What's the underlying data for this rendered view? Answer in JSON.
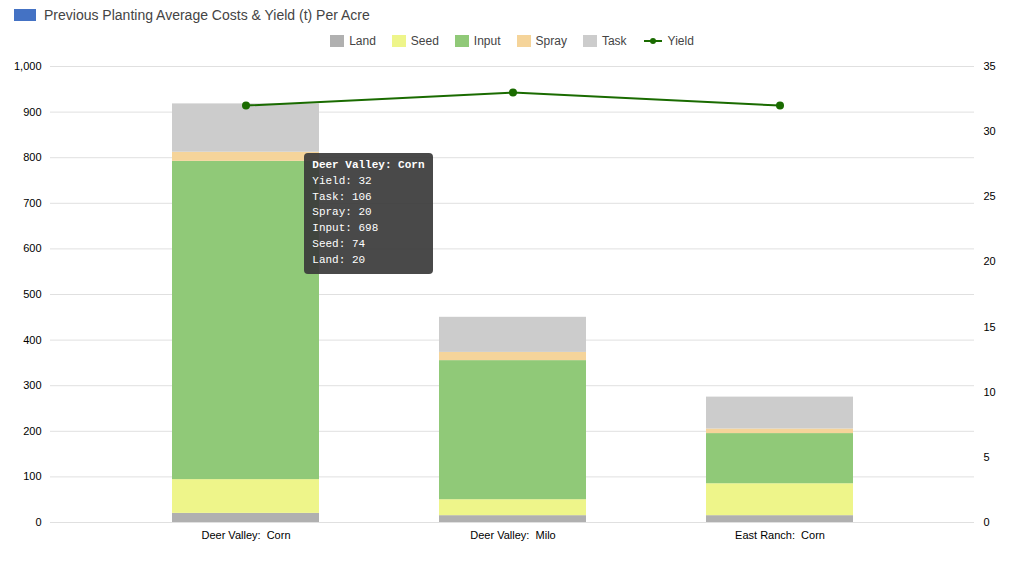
{
  "chart_data": {
    "type": "bar",
    "stacked": true,
    "title": "Previous Planting Average Costs & Yield (t) Per Acre",
    "categories": [
      "Deer Valley:  Corn",
      "Deer Valley:  Milo",
      "East Ranch:  Corn"
    ],
    "series": [
      {
        "name": "Land",
        "color": "#b0b0b0",
        "values": [
          20,
          15,
          15
        ]
      },
      {
        "name": "Seed",
        "color": "#eef58a",
        "values": [
          74,
          35,
          70
        ]
      },
      {
        "name": "Input",
        "color": "#90c978",
        "values": [
          698,
          305,
          110
        ]
      },
      {
        "name": "Spray",
        "color": "#f5d49a",
        "values": [
          20,
          18,
          10
        ]
      },
      {
        "name": "Task",
        "color": "#cccccc",
        "values": [
          106,
          77,
          70
        ]
      },
      {
        "name": "Yield",
        "type": "line",
        "axis": "y2",
        "color": "#1a6b00",
        "marker": "circle",
        "values": [
          32,
          33,
          32
        ]
      }
    ],
    "ylim": [
      0,
      1000
    ],
    "yticks": [
      0,
      100,
      200,
      300,
      400,
      500,
      600,
      700,
      800,
      900,
      1000
    ],
    "y2lim": [
      0,
      35
    ],
    "y2ticks": [
      0,
      5,
      10,
      15,
      20,
      25,
      30,
      35
    ],
    "grid": true,
    "legend": "upper center",
    "annotations": [
      {
        "text": "Deer Valley: Corn\nYield: 32\nTask: 106\nSpray: 20\nInput: 698\nSeed: 74\nLand: 20",
        "x": "Deer Valley:  Corn",
        "y": 810
      }
    ]
  }
}
